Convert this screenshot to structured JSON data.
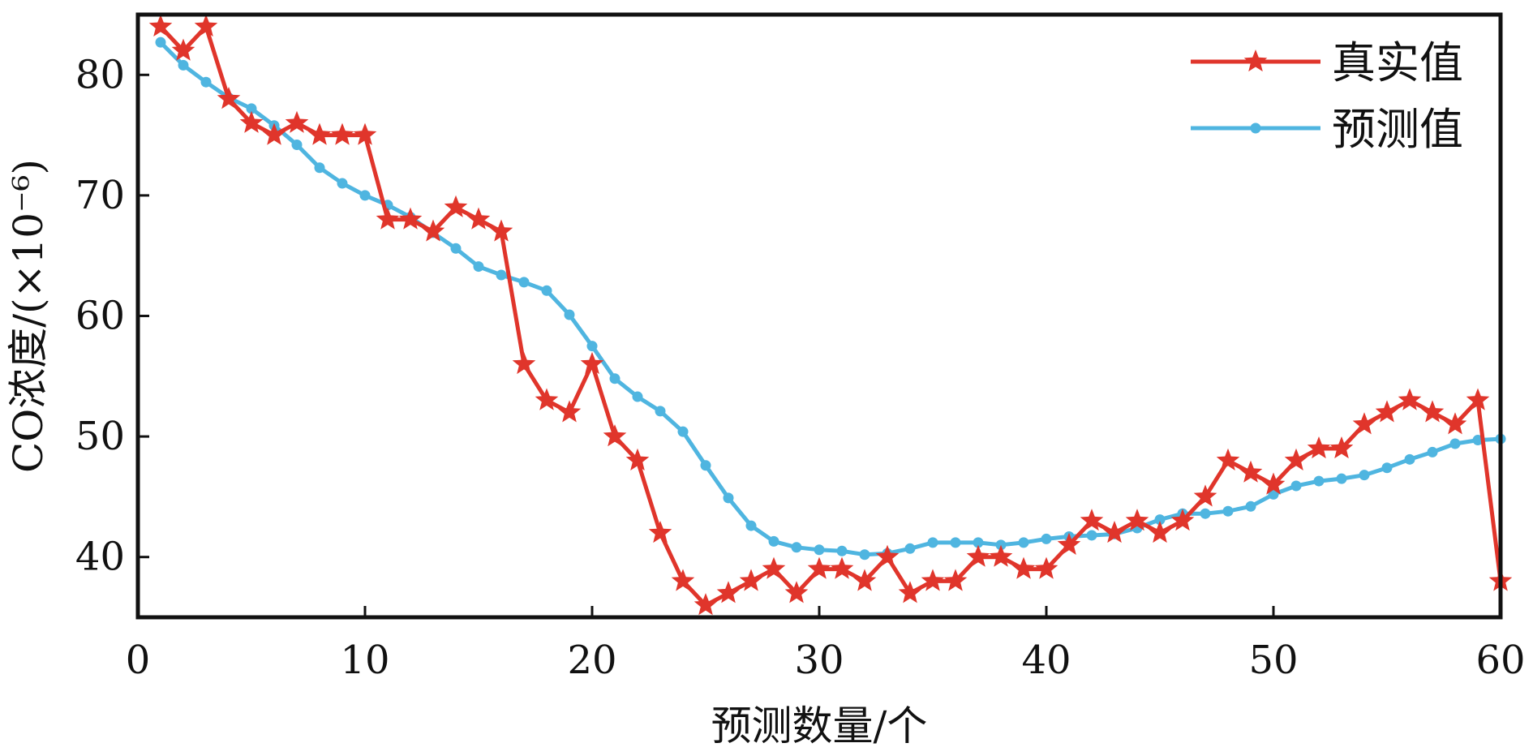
{
  "chart_data": {
    "type": "line",
    "xlabel": "预测数量/个",
    "ylabel": "CO浓度/(×10⁻⁶)",
    "xlim": [
      0,
      60
    ],
    "ylim": [
      35,
      85
    ],
    "x_ticks": [
      0,
      10,
      20,
      30,
      40,
      50,
      60
    ],
    "y_ticks": [
      40,
      50,
      60,
      70,
      80
    ],
    "grid": false,
    "legend_position": "top-right",
    "x": [
      1,
      2,
      3,
      4,
      5,
      6,
      7,
      8,
      9,
      10,
      11,
      12,
      13,
      14,
      15,
      16,
      17,
      18,
      19,
      20,
      21,
      22,
      23,
      24,
      25,
      26,
      27,
      28,
      29,
      30,
      31,
      32,
      33,
      34,
      35,
      36,
      37,
      38,
      39,
      40,
      41,
      42,
      43,
      44,
      45,
      46,
      47,
      48,
      49,
      50,
      51,
      52,
      53,
      54,
      55,
      56,
      57,
      58,
      59,
      60
    ],
    "series": [
      {
        "name": "真实值",
        "color": "#e0352b",
        "marker": "star",
        "values": [
          84,
          82,
          84,
          78,
          76,
          75,
          76,
          75,
          75,
          75,
          68,
          68,
          67,
          69,
          68,
          67,
          56,
          53,
          52,
          56,
          50,
          48,
          42,
          38,
          36,
          37,
          38,
          39,
          37,
          39,
          39,
          38,
          40,
          37,
          38,
          38,
          40,
          40,
          39,
          39,
          41,
          43,
          42,
          43,
          42,
          43,
          45,
          48,
          47,
          46,
          48,
          49,
          49,
          51,
          52,
          53,
          52,
          51,
          53,
          38
        ]
      },
      {
        "name": "预测值",
        "color": "#4fb5e0",
        "marker": "circle",
        "values": [
          82.7,
          80.8,
          79.4,
          78.1,
          77.2,
          75.8,
          74.2,
          72.3,
          71.0,
          70.0,
          69.2,
          68.2,
          66.9,
          65.6,
          64.1,
          63.4,
          62.8,
          62.1,
          60.1,
          57.5,
          54.8,
          53.3,
          52.1,
          50.4,
          47.6,
          44.9,
          42.6,
          41.3,
          40.8,
          40.6,
          40.5,
          40.2,
          40.3,
          40.7,
          41.2,
          41.2,
          41.2,
          41.0,
          41.2,
          41.5,
          41.7,
          41.8,
          41.9,
          42.4,
          43.1,
          43.6,
          43.6,
          43.8,
          44.2,
          45.2,
          45.9,
          46.3,
          46.5,
          46.8,
          47.4,
          48.1,
          48.7,
          49.4,
          49.7,
          49.8
        ]
      }
    ]
  }
}
